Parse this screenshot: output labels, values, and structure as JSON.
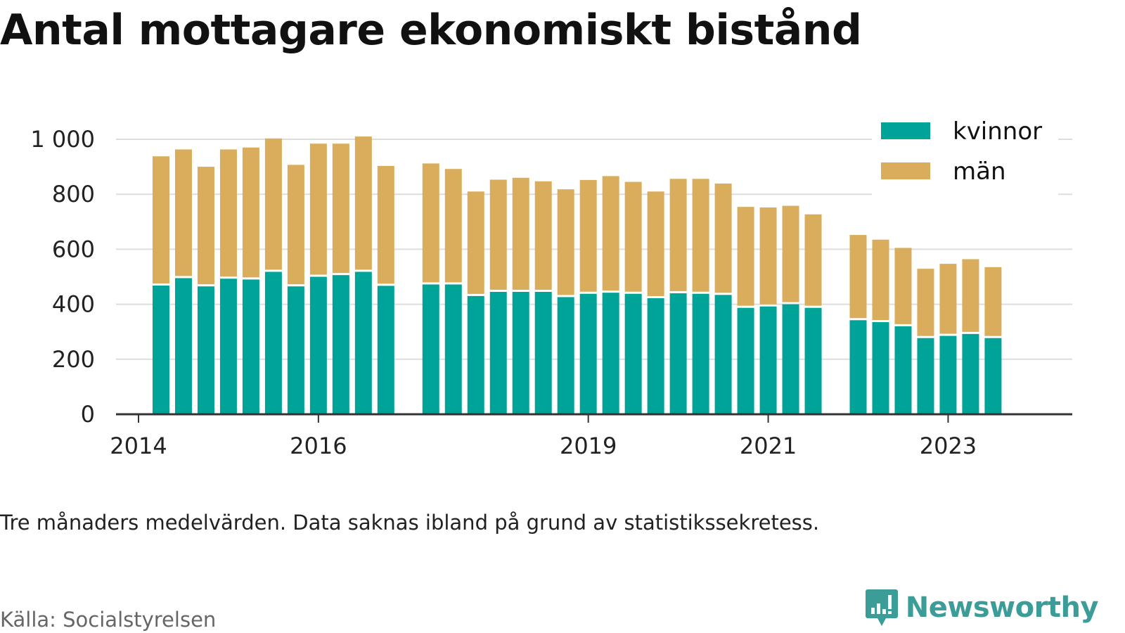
{
  "header": {
    "title": "Antal mottagare ekonomiskt bistånd"
  },
  "footer": {
    "note": "Tre månaders medelvärden. Data saknas ibland på grund av statistikssekretess.",
    "source": "Källa: Socialstyrelsen",
    "brand": "Newsworthy",
    "brand_icon": "bar-chart-speech-bubble-icon"
  },
  "colors": {
    "kvinnor": "#00a398",
    "man": "#d9ad5b",
    "grid": "#dddddd",
    "axis": "#333333",
    "brand": "#3c9c98"
  },
  "chart_data": {
    "type": "bar",
    "stacked": true,
    "title": "Antal mottagare ekonomiskt bistånd",
    "xlabel": "",
    "ylabel": "",
    "ylim": [
      0,
      1000
    ],
    "grid": true,
    "legend_position": "top-right",
    "yticks": [
      {
        "value": 0,
        "label": "0"
      },
      {
        "value": 200,
        "label": "200"
      },
      {
        "value": 400,
        "label": "400"
      },
      {
        "value": 600,
        "label": "600"
      },
      {
        "value": 800,
        "label": "800"
      },
      {
        "value": 1000,
        "label": "1 000"
      }
    ],
    "xticks": [
      {
        "value": 2014.0,
        "label": "2014"
      },
      {
        "value": 2016.0,
        "label": "2016"
      },
      {
        "value": 2019.0,
        "label": "2019"
      },
      {
        "value": 2021.0,
        "label": "2021"
      },
      {
        "value": 2023.0,
        "label": "2023"
      }
    ],
    "x": [
      2014.25,
      2014.5,
      2014.75,
      2015.0,
      2015.25,
      2015.5,
      2015.75,
      2016.0,
      2016.25,
      2016.5,
      2016.75,
      2017.25,
      2017.5,
      2017.75,
      2018.0,
      2018.25,
      2018.5,
      2018.75,
      2019.0,
      2019.25,
      2019.5,
      2019.75,
      2020.0,
      2020.25,
      2020.5,
      2020.75,
      2021.0,
      2021.25,
      2021.5,
      2022.0,
      2022.25,
      2022.5,
      2022.75,
      2023.0,
      2023.25,
      2023.5
    ],
    "series": [
      {
        "name": "kvinnor",
        "values": [
          468,
          495,
          465,
          493,
          490,
          518,
          465,
          500,
          506,
          518,
          467,
          472,
          472,
          430,
          445,
          445,
          445,
          426,
          438,
          442,
          438,
          422,
          440,
          438,
          434,
          387,
          392,
          400,
          387,
          342,
          335,
          320,
          277,
          285,
          292,
          277
        ]
      },
      {
        "name": "män",
        "values": [
          470,
          468,
          435,
          470,
          480,
          485,
          442,
          484,
          478,
          492,
          436,
          440,
          420,
          380,
          408,
          415,
          402,
          392,
          414,
          424,
          407,
          388,
          416,
          418,
          405,
          367,
          360,
          358,
          340,
          310,
          300,
          285,
          252,
          262,
          272,
          258
        ]
      }
    ]
  }
}
